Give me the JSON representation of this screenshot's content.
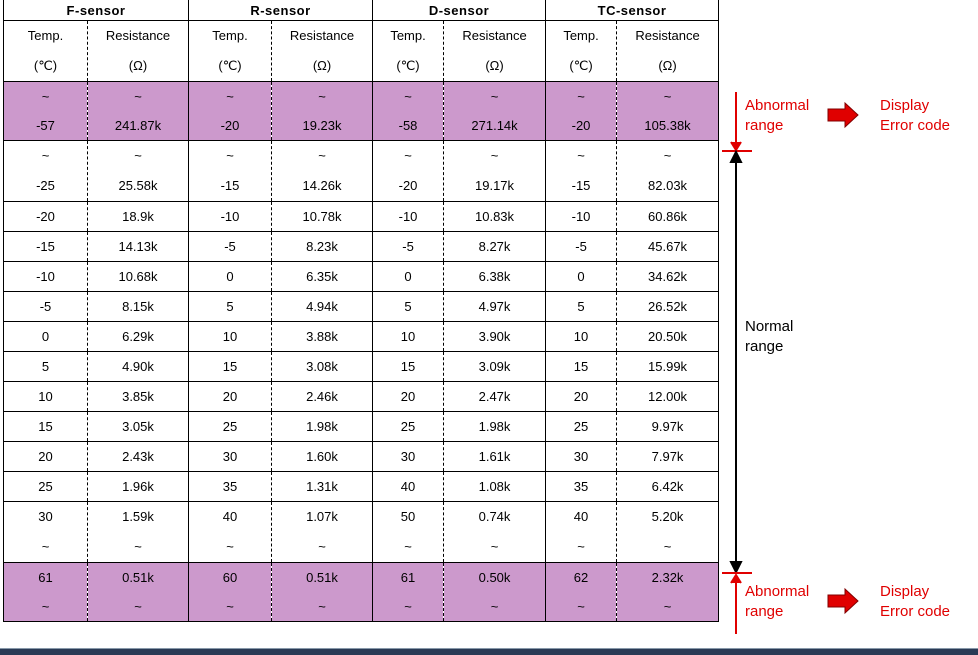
{
  "groups": [
    "F-sensor",
    "R-sensor",
    "D-sensor",
    "TC-sensor"
  ],
  "subheaders": {
    "temp": "Temp.",
    "temp_unit": "(℃)",
    "resistance": "Resistance",
    "resistance_unit": "(Ω)"
  },
  "tilde": "~",
  "abnormal_low": [
    "-57",
    "241.87k",
    "-20",
    "19.23k",
    "-58",
    "271.14k",
    "-20",
    "105.38k"
  ],
  "normal_first": [
    "-25",
    "25.58k",
    "-15",
    "14.26k",
    "-20",
    "19.17k",
    "-15",
    "82.03k"
  ],
  "normal_rows": [
    [
      "-20",
      "18.9k",
      "-10",
      "10.78k",
      "-10",
      "10.83k",
      "-10",
      "60.86k"
    ],
    [
      "-15",
      "14.13k",
      "-5",
      "8.23k",
      "-5",
      "8.27k",
      "-5",
      "45.67k"
    ],
    [
      "-10",
      "10.68k",
      "0",
      "6.35k",
      "0",
      "6.38k",
      "0",
      "34.62k"
    ],
    [
      "-5",
      "8.15k",
      "5",
      "4.94k",
      "5",
      "4.97k",
      "5",
      "26.52k"
    ],
    [
      "0",
      "6.29k",
      "10",
      "3.88k",
      "10",
      "3.90k",
      "10",
      "20.50k"
    ],
    [
      "5",
      "4.90k",
      "15",
      "3.08k",
      "15",
      "3.09k",
      "15",
      "15.99k"
    ],
    [
      "10",
      "3.85k",
      "20",
      "2.46k",
      "20",
      "2.47k",
      "20",
      "12.00k"
    ],
    [
      "15",
      "3.05k",
      "25",
      "1.98k",
      "25",
      "1.98k",
      "25",
      "9.97k"
    ],
    [
      "20",
      "2.43k",
      "30",
      "1.60k",
      "30",
      "1.61k",
      "30",
      "7.97k"
    ],
    [
      "25",
      "1.96k",
      "35",
      "1.31k",
      "40",
      "1.08k",
      "35",
      "6.42k"
    ]
  ],
  "normal_last": [
    "30",
    "1.59k",
    "40",
    "1.07k",
    "50",
    "0.74k",
    "40",
    "5.20k"
  ],
  "abnormal_high": [
    "61",
    "0.51k",
    "60",
    "0.51k",
    "61",
    "0.50k",
    "62",
    "2.32k"
  ],
  "annotations": {
    "abnormal_label_1": "Abnormal",
    "abnormal_label_2": "range",
    "display_label_1": "Display",
    "display_label_2": "Error code",
    "normal_label_1": "Normal",
    "normal_label_2": "range"
  },
  "colors": {
    "abnormal_fill": "#cc99cc",
    "annotation_red": "#e00000"
  }
}
